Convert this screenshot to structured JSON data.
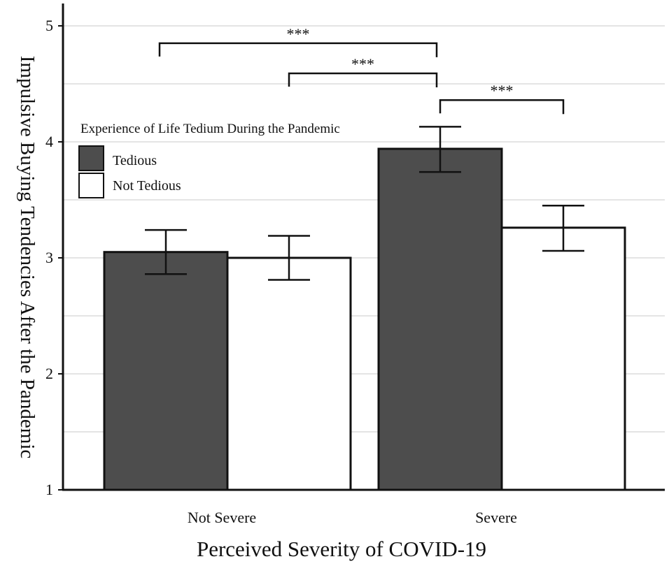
{
  "chart_data": {
    "type": "bar",
    "title": "",
    "xlabel": "Perceived Severity of COVID-19",
    "ylabel": "Impulsive Buying Tendencies After the Pandemic",
    "ylim": [
      1,
      5.2
    ],
    "yticks": [
      1,
      2,
      3,
      4,
      5
    ],
    "categories": [
      "Not Severe",
      "Severe"
    ],
    "legend": {
      "title": "Experience of Life Tedium During the Pandemic",
      "position": "top-left"
    },
    "series": [
      {
        "name": "Tedious",
        "color": "#4d4d4d",
        "values": [
          3.05,
          3.94
        ],
        "error_low": [
          2.86,
          3.74
        ],
        "error_high": [
          3.24,
          4.13
        ]
      },
      {
        "name": "Not Tedious",
        "color": "#ffffff",
        "values": [
          3.0,
          3.26
        ],
        "error_low": [
          2.81,
          3.06
        ],
        "error_high": [
          3.19,
          3.45
        ]
      }
    ],
    "significance": [
      {
        "label": "***",
        "from": "Not Severe / Tedious",
        "to": "Severe / Tedious",
        "y": 4.85
      },
      {
        "label": "***",
        "from": "Not Severe / Not Tedious",
        "to": "Severe / Tedious",
        "y": 4.59
      },
      {
        "label": "***",
        "from": "Severe / Tedious",
        "to": "Severe / Not Tedious",
        "y": 4.36
      }
    ]
  }
}
